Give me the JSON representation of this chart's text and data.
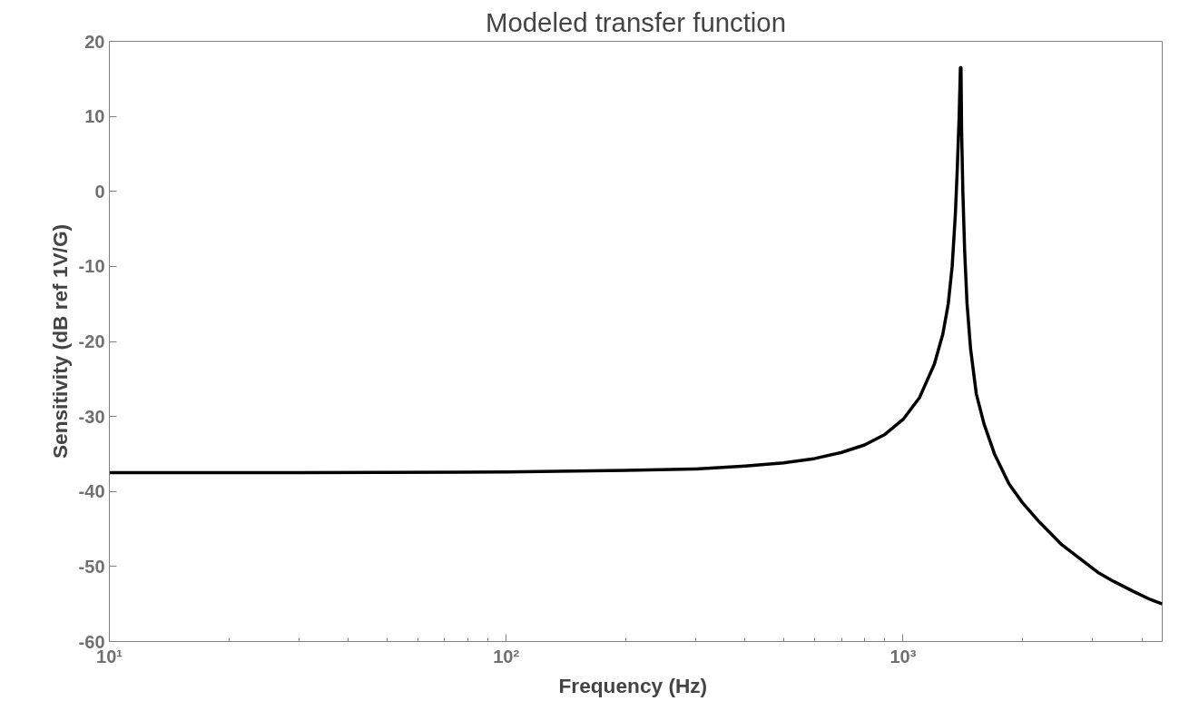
{
  "chart_data": {
    "type": "line",
    "title": "Modeled transfer function",
    "xlabel": "Frequency  (Hz)",
    "ylabel": "Sensitivity (dB ref 1V/G)",
    "log": "x",
    "grid": false,
    "marker": "none",
    "line_style": "solid",
    "xlim": [
      10,
      4500
    ],
    "ylim": [
      -60,
      20
    ],
    "xticks": [
      {
        "value": 10,
        "label": "10¹"
      },
      {
        "value": 20,
        "label": null
      },
      {
        "value": 30,
        "label": null
      },
      {
        "value": 40,
        "label": null
      },
      {
        "value": 50,
        "label": null
      },
      {
        "value": 60,
        "label": null
      },
      {
        "value": 70,
        "label": null
      },
      {
        "value": 80,
        "label": null
      },
      {
        "value": 90,
        "label": null
      },
      {
        "value": 100,
        "label": "10²"
      },
      {
        "value": 200,
        "label": null
      },
      {
        "value": 300,
        "label": null
      },
      {
        "value": 400,
        "label": null
      },
      {
        "value": 500,
        "label": null
      },
      {
        "value": 600,
        "label": null
      },
      {
        "value": 700,
        "label": null
      },
      {
        "value": 800,
        "label": null
      },
      {
        "value": 900,
        "label": null
      },
      {
        "value": 1000,
        "label": "10³"
      },
      {
        "value": 2000,
        "label": null
      },
      {
        "value": 3000,
        "label": null
      },
      {
        "value": 4000,
        "label": null
      }
    ],
    "yticks": [
      -60,
      -50,
      -40,
      -30,
      -20,
      -10,
      0,
      10,
      20
    ],
    "series": [
      {
        "color": "#000000",
        "x": [
          10,
          30,
          100,
          200,
          300,
          400,
          500,
          600,
          700,
          800,
          900,
          1000,
          1100,
          1200,
          1260,
          1300,
          1330,
          1355,
          1370,
          1385,
          1395,
          1400,
          1405,
          1415,
          1430,
          1450,
          1480,
          1530,
          1600,
          1700,
          1850,
          2000,
          2200,
          2500,
          2800,
          3100,
          3400,
          3800,
          4200,
          4500
        ],
        "values": [
          -37.5,
          -37.5,
          -37.4,
          -37.2,
          -37.0,
          -36.6,
          -36.2,
          -35.6,
          -34.8,
          -33.8,
          -32.4,
          -30.4,
          -27.5,
          -23,
          -19,
          -15,
          -10,
          -3,
          3,
          10,
          16.5,
          16.5,
          8,
          0,
          -8,
          -15,
          -21,
          -27,
          -31,
          -35,
          -39,
          -41.5,
          -44,
          -47,
          -49,
          -50.8,
          -52,
          -53.3,
          -54.4,
          -55
        ]
      }
    ]
  }
}
